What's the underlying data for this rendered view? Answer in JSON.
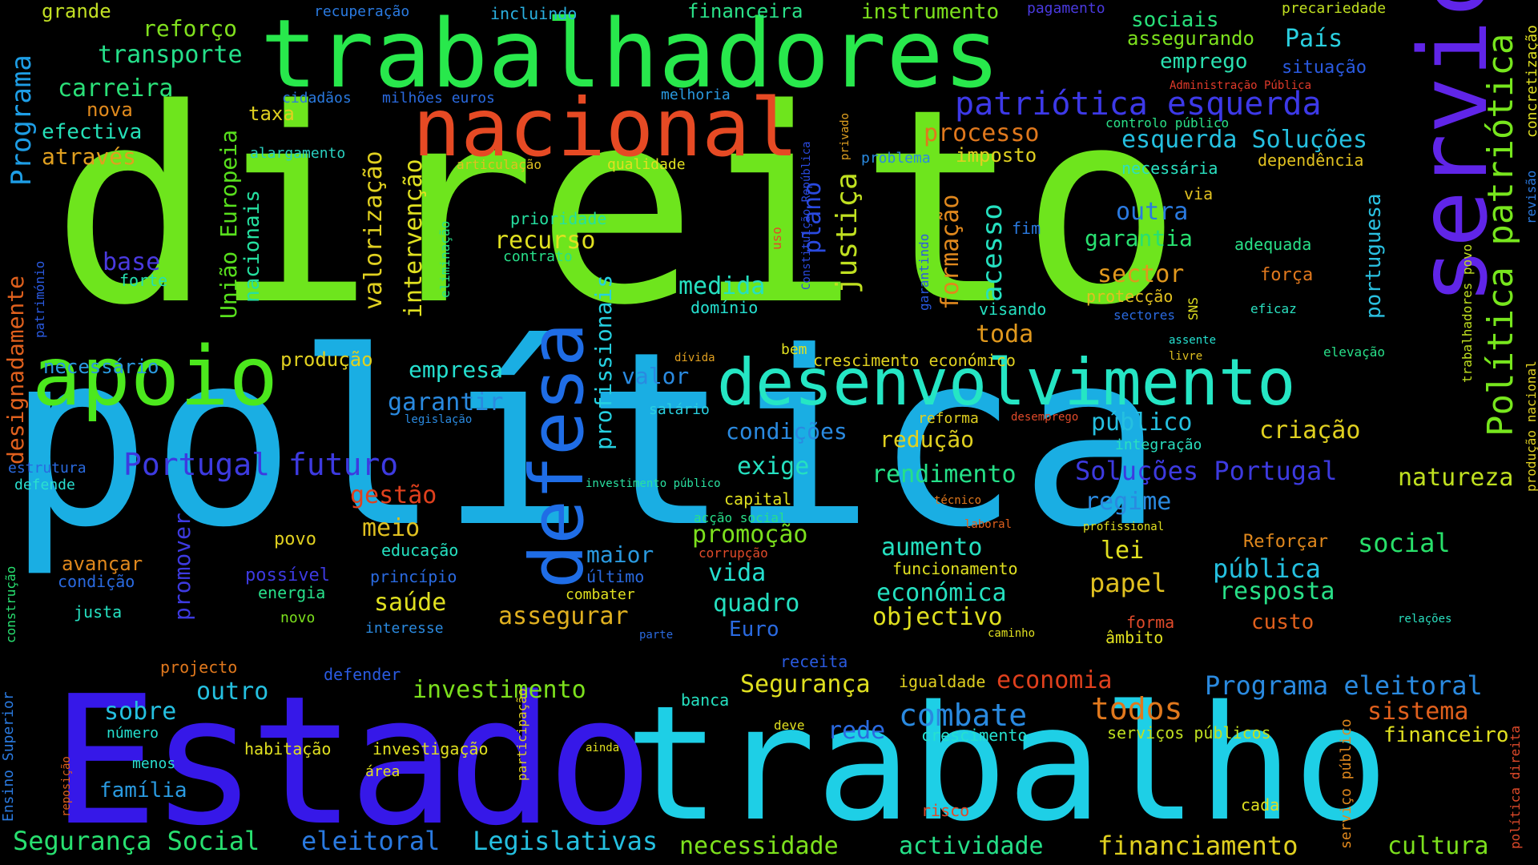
{
  "words": [
    "direito",
    "política",
    "Estado",
    "trabalho",
    "trabalhadores",
    "nacional",
    "serviço",
    "apoio",
    "defesa",
    "desenvolvimento",
    "patriótica esquerda",
    "Política patriótica",
    "Programa",
    "grande",
    "reforço",
    "transporte",
    "carreira",
    "nova",
    "efectiva",
    "através",
    "recuperação",
    "incluindo",
    "financeira",
    "instrumento",
    "pagamento",
    "precariedade",
    "sociais",
    "assegurando",
    "País",
    "emprego",
    "situação",
    "Administração Pública",
    "controlo público",
    "esquerda Soluções",
    "necessária",
    "dependência",
    "processo",
    "imposto",
    "problema",
    "cidadãos",
    "milhões euros",
    "melhoria",
    "taxa",
    "alargamento",
    "articulação",
    "qualidade",
    "Constituição República",
    "privado",
    "uso",
    "União Europeia",
    "nacionais",
    "valorização",
    "intervenção",
    "formação",
    "acesso",
    "justiça",
    "plano",
    "prioridade",
    "recurso",
    "contrato",
    "medida",
    "domínio",
    "profissionais",
    "eliminação",
    "garantindo",
    "fim",
    "garantia",
    "outra",
    "adequada",
    "sector",
    "força",
    "protecção",
    "SNS",
    "sectores",
    "eficaz",
    "visando",
    "portuguesa",
    "via",
    "designadamente",
    "património",
    "base",
    "forte",
    "necessário",
    "produção",
    "toda",
    "empresa",
    "valor",
    "dívida",
    "salário",
    "bem",
    "crescimento económico",
    "elevação",
    "assente",
    "livre",
    "garantir",
    "legislação",
    "condições",
    "reforma",
    "desemprego",
    "público",
    "criação",
    "redução",
    "integração",
    "estrutura",
    "defende",
    "Portugal futuro",
    "gestão",
    "exige",
    "rendimento",
    "Soluções Portugal",
    "natureza",
    "investimento público",
    "capital",
    "técnico",
    "regime",
    "acção social",
    "laboral",
    "profissional",
    "meio",
    "promoção",
    "corrupção",
    "aumento",
    "lei",
    "Reforçar",
    "social",
    "educação",
    "povo",
    "maior",
    "avançar",
    "promover",
    "possível",
    "princípio",
    "último",
    "vida",
    "funcionamento",
    "pública",
    "papel",
    "condição",
    "energia",
    "saúde",
    "combater",
    "económica",
    "resposta",
    "justa",
    "novo",
    "interesse",
    "assegurar",
    "quadro",
    "objectivo",
    "custo",
    "Euro",
    "forma",
    "relações",
    "construção",
    "parte",
    "caminho",
    "âmbito",
    "projecto",
    "receita",
    "defender",
    "igualdade",
    "economia",
    "Segurança",
    "outro",
    "investimento",
    "Programa eleitoral",
    "sobre",
    "todos",
    "sistema",
    "combate",
    "banca",
    "rede",
    "deve",
    "número",
    "crescimento",
    "serviços públicos",
    "financeiro",
    "habitação",
    "investigação",
    "ainda",
    "menos",
    "área",
    "participação",
    "família",
    "risco",
    "cada",
    "Segurança Social",
    "eleitoral",
    "Legislativas",
    "necessidade",
    "actividade",
    "financiamento",
    "cultura",
    "Ensino Superior",
    "reposição",
    "serviço público",
    "política direita",
    "produção nacional",
    "trabalhadores povo",
    "revisão",
    "concretização"
  ]
}
